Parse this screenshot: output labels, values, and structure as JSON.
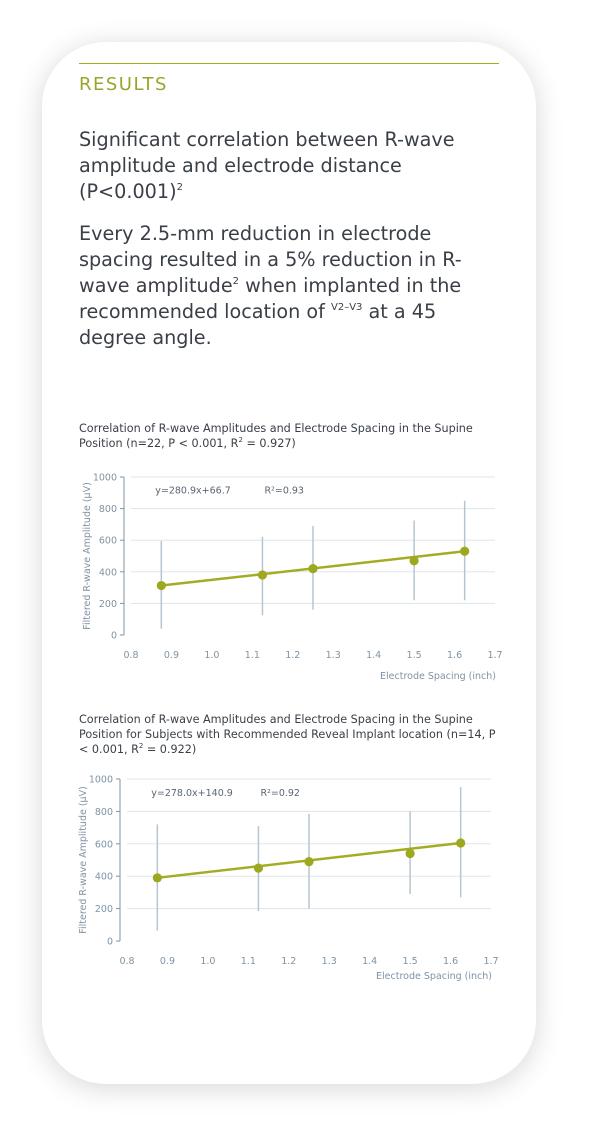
{
  "section_label": "RESULTS",
  "para1": {
    "text": "Significant correlation between R-wave amplitude and electrode distance (P<0.001)",
    "sup": "2"
  },
  "para2": {
    "text_a": "Every 2.5-mm reduction in electrode spacing resulted in a 5% reduction in R-wave amplitude",
    "sup": "2",
    "text_b": " when implanted in the recommended location of ",
    "location": "V2–V3",
    "text_c": " at a 45 degree angle."
  },
  "colors": {
    "accent": "#a3ad24",
    "regression_line": "#a3ad24",
    "marker": "#9ea81e",
    "error_bar": "#b6c6d0",
    "grid": "#dde5ea",
    "axis_text": "#7f93a4",
    "body_text": "#3a3f47"
  },
  "chart_data": [
    {
      "type": "scatter",
      "title": "Correlation of R-wave Amplitudes and Electrode Spacing in the Supine Position (n=22, P < 0.001, R",
      "title_sup": "2",
      "title_end": " = 0.927)",
      "xlabel": "Electrode Spacing (inch)",
      "ylabel": "Filtered R-wave Amplitude (μV)",
      "xlim": [
        0.8,
        1.7
      ],
      "ylim": [
        0,
        1000
      ],
      "xticks": [
        0.8,
        0.9,
        1.0,
        1.1,
        1.2,
        1.3,
        1.4,
        1.5,
        1.6,
        1.7
      ],
      "xtick_labels": [
        "0.8",
        "0.9",
        "1.0",
        "1.1",
        "1.2",
        "1.3",
        "1.4",
        "1.5",
        "1.6",
        "1.7"
      ],
      "yticks": [
        0,
        200,
        400,
        600,
        800,
        1000
      ],
      "ytick_labels": [
        "0",
        "200",
        "400",
        "600",
        "800",
        "1000"
      ],
      "grid": true,
      "equation": "y=280.9x+66.7",
      "r2_label": "R²=0.93",
      "fit": {
        "slope": 280.9,
        "intercept": 66.7
      },
      "points": [
        {
          "x": 0.875,
          "y": 313,
          "low": 40,
          "high": 595
        },
        {
          "x": 1.125,
          "y": 380,
          "low": 125,
          "high": 620
        },
        {
          "x": 1.25,
          "y": 420,
          "low": 160,
          "high": 690
        },
        {
          "x": 1.5,
          "y": 470,
          "low": 220,
          "high": 725
        },
        {
          "x": 1.625,
          "y": 530,
          "low": 220,
          "high": 850
        }
      ]
    },
    {
      "type": "scatter",
      "title": "Correlation of R-wave Amplitudes and Electrode Spacing in the Supine Position for Subjects with Recommended Reveal Implant location (n=14, P < 0.001, R",
      "title_sup": "2",
      "title_end": " = 0.922)",
      "xlabel": "Electrode Spacing (inch)",
      "ylabel": "Filtered R-wave Amplitude (μV)",
      "xlim": [
        0.8,
        1.7
      ],
      "ylim": [
        0,
        1000
      ],
      "xticks": [
        0.8,
        0.9,
        1.0,
        1.1,
        1.2,
        1.3,
        1.4,
        1.5,
        1.6,
        1.7
      ],
      "xtick_labels": [
        "0.8",
        "0.9",
        "1.0",
        "1.1",
        "1.2",
        "1.3",
        "1.4",
        "1.5",
        "1.6",
        "1.7"
      ],
      "yticks": [
        0,
        200,
        400,
        600,
        800,
        1000
      ],
      "ytick_labels": [
        "0",
        "200",
        "400",
        "600",
        "800",
        "1000"
      ],
      "grid": true,
      "equation": "y=278.0x+140.9",
      "r2_label": "R²=0.92",
      "fit": {
        "slope": 278.0,
        "intercept": 140.9
      },
      "points": [
        {
          "x": 0.875,
          "y": 390,
          "low": 65,
          "high": 720
        },
        {
          "x": 1.125,
          "y": 450,
          "low": 185,
          "high": 710
        },
        {
          "x": 1.25,
          "y": 490,
          "low": 200,
          "high": 785
        },
        {
          "x": 1.5,
          "y": 540,
          "low": 290,
          "high": 800
        },
        {
          "x": 1.625,
          "y": 605,
          "low": 270,
          "high": 950
        }
      ]
    }
  ]
}
